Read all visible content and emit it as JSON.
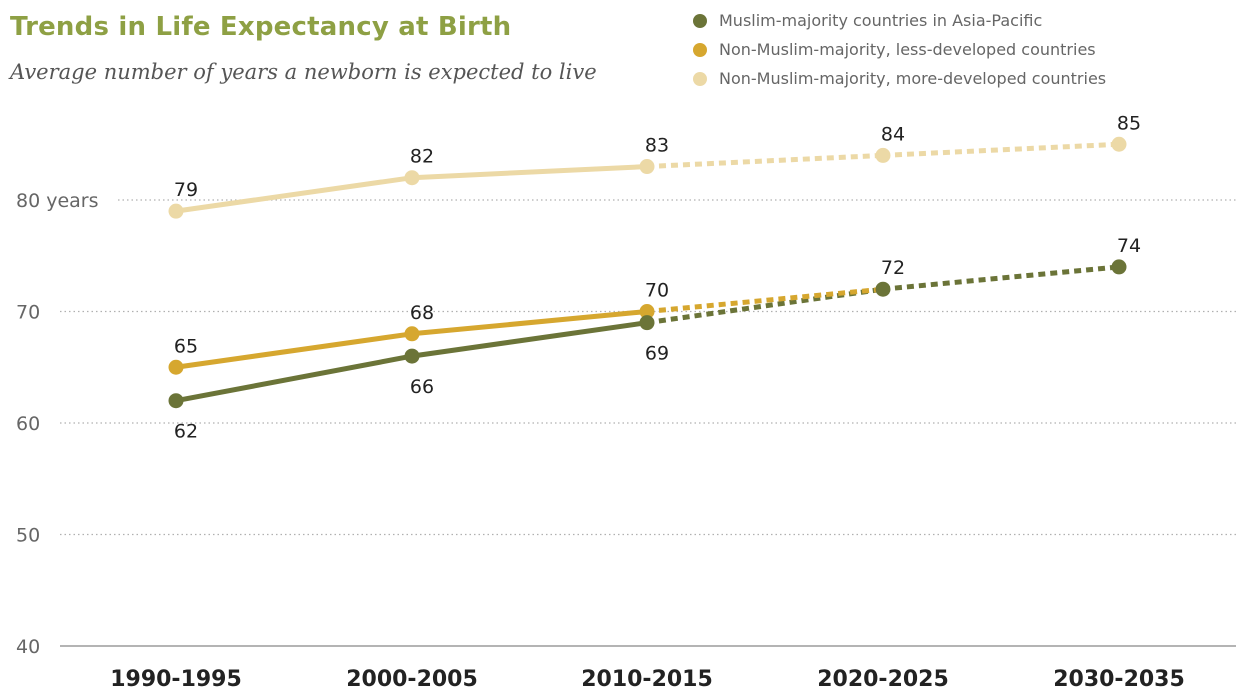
{
  "title": "Trends in Life Expectancy at Birth",
  "subtitle": "Average number of years a newborn is expected to live",
  "colors": {
    "title": "#8ea044",
    "muslim_asia": "#6b7438",
    "non_muslim_less": "#d6a72f",
    "non_muslim_more": "#ecd9a6",
    "grid": "#b0b0b0",
    "axis": "#888888"
  },
  "chart_data": {
    "type": "line",
    "title": "Trends in Life Expectancy at Birth",
    "subtitle": "Average number of years a newborn is expected to live",
    "categories": [
      "1990-1995",
      "2000-2005",
      "2010-2015",
      "2020-2025",
      "2030-2035"
    ],
    "ylim": [
      40,
      85
    ],
    "y_ticks": [
      40,
      50,
      60,
      70,
      80
    ],
    "y_tick_labels": [
      "40",
      "50",
      "60",
      "70",
      "80 years"
    ],
    "grid": true,
    "legend_position": "top-right",
    "projected_from_index": 2,
    "series": [
      {
        "name": "Non-Muslim-majority, more-developed countries",
        "color": "#ecd9a6",
        "values": [
          79,
          82,
          83,
          84,
          85
        ],
        "label_positions": [
          "above",
          "above",
          "above",
          "above",
          "above"
        ]
      },
      {
        "name": "Non-Muslim-majority, less-developed countries",
        "color": "#d6a72f",
        "values": [
          65,
          68,
          70,
          null,
          null
        ],
        "label_positions": [
          "above",
          "above",
          "above",
          "none",
          "none"
        ]
      },
      {
        "name": "Muslim-majority countries in Asia-Pacific",
        "color": "#6b7438",
        "values": [
          62,
          66,
          69,
          72,
          74
        ],
        "label_positions": [
          "below",
          "below",
          "below",
          "above",
          "above"
        ]
      }
    ]
  }
}
